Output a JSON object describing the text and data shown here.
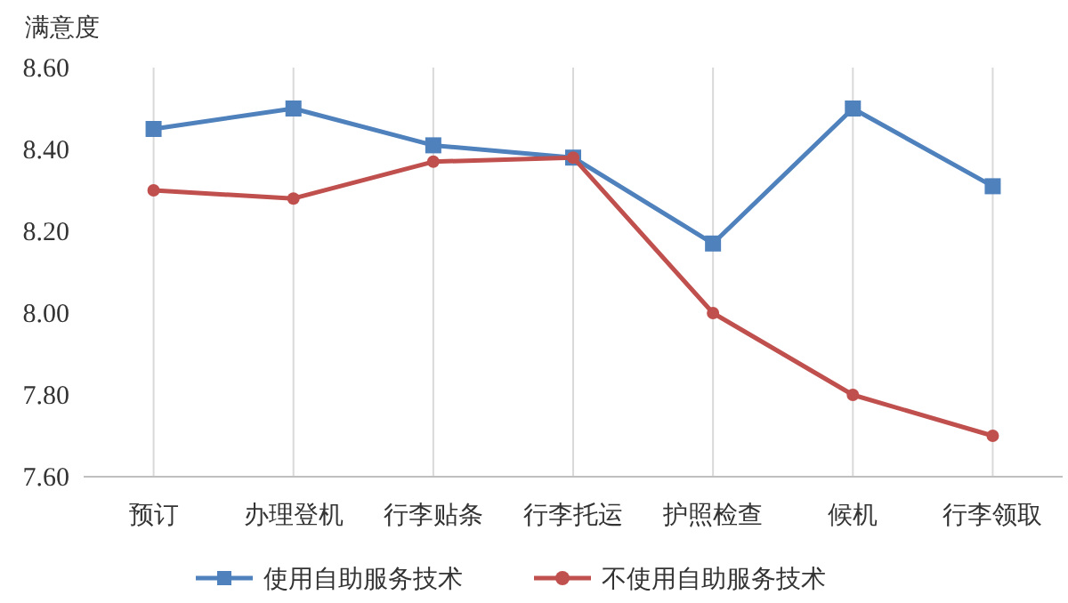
{
  "chart_data": {
    "type": "line",
    "ylabel": "满意度",
    "categories": [
      "预订",
      "办理登机",
      "行李贴条",
      "行李托运",
      "护照检查",
      "候机",
      "行李领取"
    ],
    "series": [
      {
        "name": "使用自助服务技术",
        "color": "#4f81bd",
        "marker": "square",
        "values": [
          8.45,
          8.5,
          8.41,
          8.38,
          8.17,
          8.5,
          8.31
        ]
      },
      {
        "name": "不使用自助服务技术",
        "color": "#c0504d",
        "marker": "circle",
        "values": [
          8.3,
          8.28,
          8.37,
          8.38,
          8.0,
          7.8,
          7.7
        ]
      }
    ],
    "ylim": [
      7.6,
      8.6
    ],
    "yticks": [
      {
        "value": 7.6,
        "label": "7.60"
      },
      {
        "value": 7.8,
        "label": "7.80"
      },
      {
        "value": 8.0,
        "label": "8.00"
      },
      {
        "value": 8.2,
        "label": "8.20"
      },
      {
        "value": 8.4,
        "label": "8.40"
      },
      {
        "value": 8.6,
        "label": "8.60"
      }
    ],
    "grid": "x",
    "legend": "bottom",
    "line_style": "solid"
  }
}
